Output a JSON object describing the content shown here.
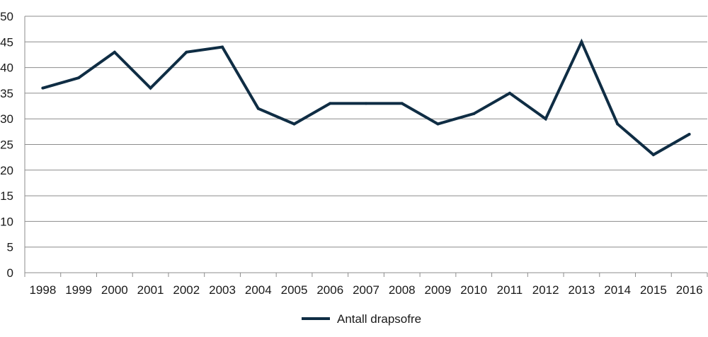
{
  "chart_data": {
    "type": "line",
    "title": "",
    "xlabel": "",
    "ylabel": "",
    "categories": [
      "1998",
      "1999",
      "2000",
      "2001",
      "2002",
      "2003",
      "2004",
      "2005",
      "2006",
      "2007",
      "2008",
      "2009",
      "2010",
      "2011",
      "2012",
      "2013",
      "2014",
      "2015",
      "2016"
    ],
    "series": [
      {
        "name": "Antall drapsofre",
        "color": "#0f2d44",
        "values": [
          36,
          38,
          43,
          36,
          43,
          44,
          32,
          29,
          33,
          33,
          33,
          29,
          31,
          35,
          30,
          45,
          29,
          23,
          27
        ]
      }
    ],
    "ylim": [
      0,
      50
    ],
    "yticks": [
      0,
      5,
      10,
      15,
      20,
      25,
      30,
      35,
      40,
      45,
      50
    ],
    "grid": true,
    "legend_position": "bottom-center"
  }
}
